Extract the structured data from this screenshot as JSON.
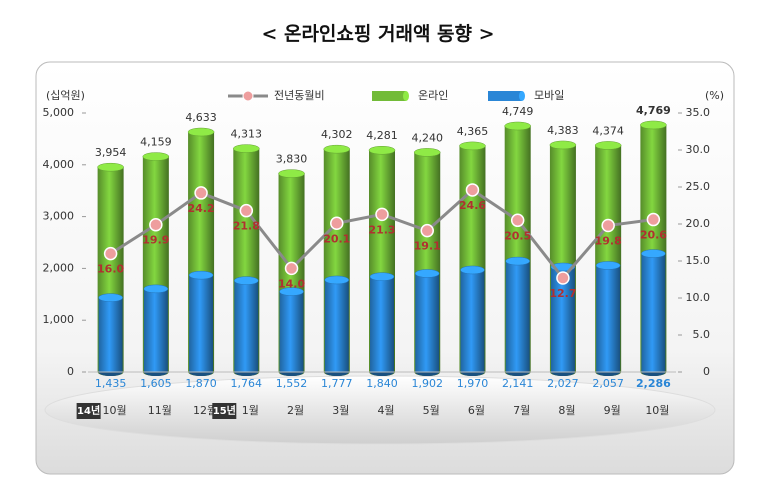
{
  "chart_data": {
    "type": "bar-line",
    "title": "< 온라인쇼핑 거래액 동향 >",
    "y_label": "(십억원)",
    "y2_label": "(%)",
    "categories": [
      "10월",
      "11월",
      "12월",
      "1월",
      "2월",
      "3월",
      "4월",
      "5월",
      "6월",
      "7월",
      "8월",
      "9월",
      "10월"
    ],
    "category_groups": [
      {
        "label": "14년",
        "start": 0
      },
      {
        "label": "15년",
        "start": 3
      }
    ],
    "ylim": [
      0,
      5000
    ],
    "yticks": [
      0,
      {
        "value": 1000,
        "label": "1,000"
      },
      {
        "value": 2000,
        "label": "2,000"
      },
      {
        "value": 3000,
        "label": "3,000"
      },
      {
        "value": 4000,
        "label": "4,000"
      },
      {
        "value": 5000,
        "label": "5,000"
      }
    ],
    "y2lim": [
      0,
      35
    ],
    "y2ticks": [
      0,
      {
        "value": 5,
        "label": "5.0"
      },
      {
        "value": 10,
        "label": "10.0"
      },
      {
        "value": 15,
        "label": "15.0"
      },
      {
        "value": 20,
        "label": "20.0"
      },
      {
        "value": 25,
        "label": "25.0"
      },
      {
        "value": 30,
        "label": "30.0"
      },
      {
        "value": 35,
        "label": "35.0"
      }
    ],
    "series": [
      {
        "name": "전년동월비",
        "type": "line",
        "axis": "y2",
        "color": "#ee9e9e",
        "values": [
          16.0,
          19.9,
          24.2,
          21.8,
          14.0,
          20.1,
          21.3,
          19.1,
          24.6,
          20.5,
          12.7,
          19.8,
          20.6
        ],
        "value_labels": [
          "16.0",
          "19.9",
          "24.2",
          "21.8",
          "14.0",
          "20.1",
          "21.3",
          "19.1",
          "24.6",
          "20.5",
          "12.7",
          "19.8",
          "20.6"
        ]
      },
      {
        "name": "온라인",
        "type": "bar",
        "color": "#72bb38",
        "values": [
          3954,
          4159,
          4633,
          4313,
          3830,
          4302,
          4281,
          4240,
          4365,
          4749,
          4383,
          4374,
          4769
        ],
        "value_labels": [
          "3,954",
          "4,159",
          "4,633",
          "4,313",
          "3,830",
          "4,302",
          "4,281",
          "4,240",
          "4,365",
          "4,749",
          "4,383",
          "4,374",
          "4,769"
        ]
      },
      {
        "name": "모바일",
        "type": "bar",
        "color": "#2a86d6",
        "values": [
          1435,
          1605,
          1870,
          1764,
          1552,
          1777,
          1840,
          1902,
          1970,
          2141,
          2027,
          2057,
          2286
        ],
        "value_labels": [
          "1,435",
          "1,605",
          "1,870",
          "1,764",
          "1,552",
          "1,777",
          "1,840",
          "1,902",
          "1,970",
          "2,141",
          "2,027",
          "2,057",
          "2,286"
        ]
      }
    ]
  }
}
